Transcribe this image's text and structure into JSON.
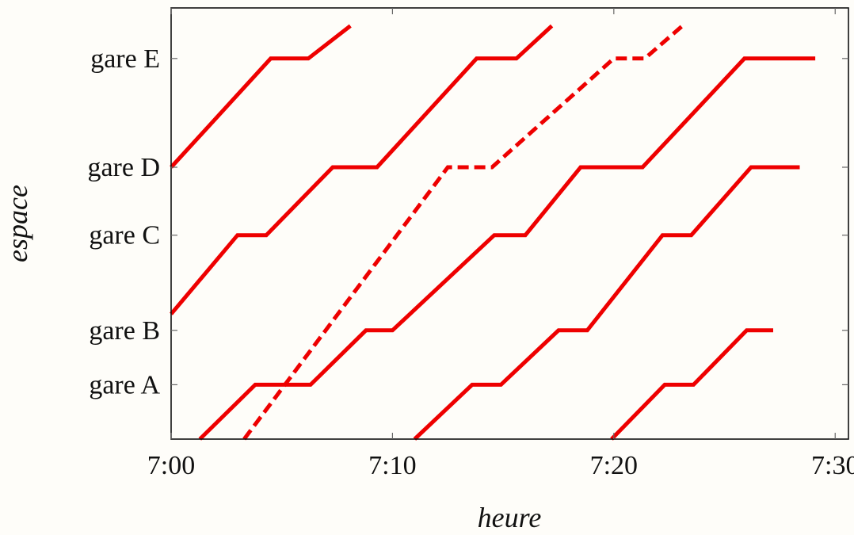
{
  "chart_data": {
    "type": "line",
    "title": "",
    "xlabel": "heure",
    "ylabel": "espace",
    "xlim": [
      0,
      30.6
    ],
    "ylim": [
      0,
      7.93
    ],
    "grid": false,
    "legend": "none",
    "x_ticks": [
      {
        "value": 0,
        "label": "7:00"
      },
      {
        "value": 10,
        "label": "7:10"
      },
      {
        "value": 20,
        "label": "7:20"
      },
      {
        "value": 30,
        "label": "7:30"
      }
    ],
    "y_ticks": [
      {
        "value": 1,
        "label": "gare A"
      },
      {
        "value": 2,
        "label": "gare B"
      },
      {
        "value": 3.75,
        "label": "gare C"
      },
      {
        "value": 5,
        "label": "gare D"
      },
      {
        "value": 7,
        "label": "gare E"
      }
    ],
    "series": [
      {
        "style": "solid",
        "color": "#ee0000",
        "points": [
          [
            0,
            5
          ],
          [
            4.5,
            7
          ],
          [
            6.2,
            7
          ],
          [
            8.1,
            7.6
          ]
        ]
      },
      {
        "style": "solid",
        "color": "#ee0000",
        "points": [
          [
            0,
            2.3
          ],
          [
            3.0,
            3.75
          ],
          [
            4.3,
            3.75
          ],
          [
            7.3,
            5
          ],
          [
            9.3,
            5
          ],
          [
            13.8,
            7
          ],
          [
            15.6,
            7
          ],
          [
            17.2,
            7.6
          ]
        ]
      },
      {
        "style": "solid",
        "color": "#ee0000",
        "points": [
          [
            1.3,
            0
          ],
          [
            3.8,
            1
          ],
          [
            6.3,
            1
          ],
          [
            8.8,
            2
          ],
          [
            10.0,
            2
          ],
          [
            14.6,
            3.75
          ],
          [
            16.0,
            3.75
          ],
          [
            18.5,
            5
          ],
          [
            21.3,
            5
          ],
          [
            25.9,
            7
          ],
          [
            29.1,
            7
          ]
        ]
      },
      {
        "style": "solid",
        "color": "#ee0000",
        "points": [
          [
            11.0,
            0
          ],
          [
            13.6,
            1
          ],
          [
            14.9,
            1
          ],
          [
            17.5,
            2
          ],
          [
            18.8,
            2
          ],
          [
            22.2,
            3.75
          ],
          [
            23.5,
            3.75
          ],
          [
            26.2,
            5
          ],
          [
            28.4,
            5
          ]
        ]
      },
      {
        "style": "solid",
        "color": "#ee0000",
        "points": [
          [
            19.9,
            0
          ],
          [
            22.3,
            1
          ],
          [
            23.6,
            1
          ],
          [
            26.0,
            2
          ],
          [
            27.2,
            2
          ]
        ]
      },
      {
        "style": "dashed",
        "color": "#ee0000",
        "points": [
          [
            3.3,
            0
          ],
          [
            12.5,
            5
          ],
          [
            14.5,
            5
          ],
          [
            20.0,
            7
          ],
          [
            21.4,
            7
          ],
          [
            23.1,
            7.6
          ]
        ]
      }
    ]
  }
}
